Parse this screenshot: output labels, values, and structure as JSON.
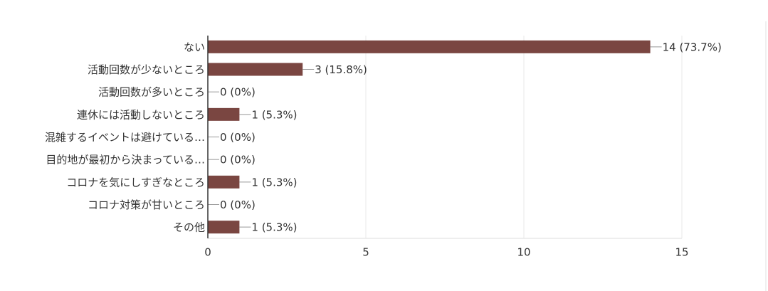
{
  "chart_data": {
    "type": "bar",
    "orientation": "horizontal",
    "categories": [
      "ない",
      "活動回数が少ないところ",
      "活動回数が多いところ",
      "連休には活動しないところ",
      "混雑するイベントは避けている…",
      "目的地が最初から決まっている…",
      "コロナを気にしすぎなところ",
      "コロナ対策が甘いところ",
      "その他"
    ],
    "values": [
      14,
      3,
      0,
      1,
      0,
      0,
      1,
      0,
      1
    ],
    "value_labels": [
      "14 (73.7%)",
      "3 (15.8%)",
      "0 (0%)",
      "1 (5.3%)",
      "0 (0%)",
      "0 (0%)",
      "1 (5.3%)",
      "0 (0%)",
      "1 (5.3%)"
    ],
    "color": "#7a4641",
    "xlim": [
      0,
      15
    ],
    "xticks": [
      0,
      5,
      10,
      15
    ],
    "grid": true
  }
}
